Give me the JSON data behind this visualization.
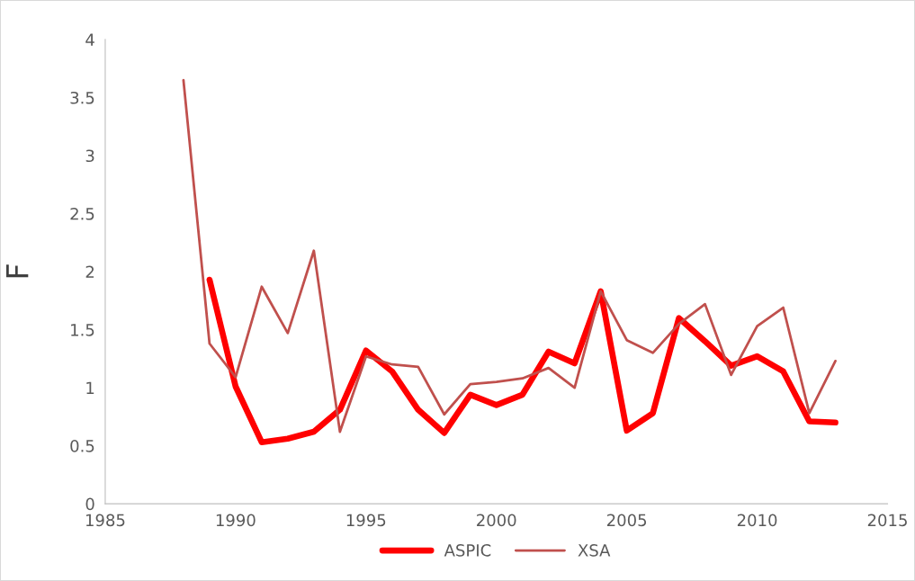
{
  "chart_data": {
    "type": "line",
    "ylabel": "F",
    "xlim": [
      1985,
      2015
    ],
    "xticks": [
      1985,
      1990,
      1995,
      2000,
      2005,
      2010,
      2015
    ],
    "ylim": [
      0,
      4
    ],
    "yticks": [
      0,
      0.5,
      1,
      1.5,
      2,
      2.5,
      3,
      3.5,
      4
    ],
    "grid": false,
    "legend": "bottom",
    "marker": "none",
    "line_style": "solid",
    "series": [
      {
        "name": "ASPIC",
        "color": "#ff0000",
        "x": [
          1989,
          1990,
          1991,
          1992,
          1993,
          1994,
          1995,
          1996,
          1997,
          1998,
          1999,
          2000,
          2001,
          2002,
          2003,
          2004,
          2005,
          2006,
          2007,
          2008,
          2009,
          2010,
          2011,
          2012,
          2013
        ],
        "values": [
          1.93,
          1.01,
          0.53,
          0.56,
          0.62,
          0.81,
          1.32,
          1.14,
          0.81,
          0.61,
          0.94,
          0.85,
          0.94,
          1.31,
          1.21,
          1.83,
          0.63,
          0.78,
          1.6,
          1.4,
          1.19,
          1.27,
          1.14,
          0.71,
          0.7
        ]
      },
      {
        "name": "XSA",
        "color": "#c0504d",
        "x": [
          1988,
          1989,
          1990,
          1991,
          1992,
          1993,
          1994,
          1995,
          1996,
          1997,
          1998,
          1999,
          2000,
          2001,
          2002,
          2003,
          2004,
          2005,
          2006,
          2007,
          2008,
          2009,
          2010,
          2011,
          2012,
          2013
        ],
        "values": [
          3.65,
          1.38,
          1.09,
          1.87,
          1.47,
          2.18,
          0.62,
          1.27,
          1.2,
          1.18,
          0.77,
          1.03,
          1.05,
          1.08,
          1.17,
          1.0,
          1.83,
          1.41,
          1.3,
          1.55,
          1.72,
          1.11,
          1.53,
          1.69,
          0.78,
          1.23
        ]
      }
    ]
  }
}
